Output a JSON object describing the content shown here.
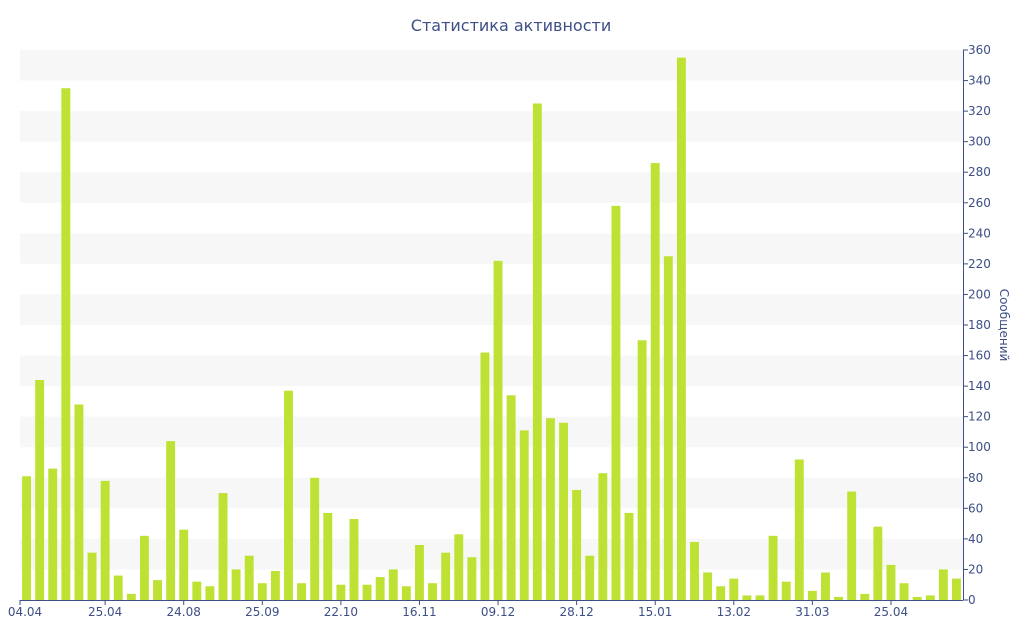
{
  "chart_data": {
    "type": "bar",
    "title": "Статистика активности",
    "xlabel": "",
    "ylabel": "Сообщений",
    "ylim": [
      0,
      360
    ],
    "y_ticks": [
      0,
      20,
      40,
      60,
      80,
      100,
      120,
      140,
      160,
      180,
      200,
      220,
      240,
      260,
      280,
      300,
      320,
      340,
      360
    ],
    "y_axis_position": "right",
    "grid": "alternating horizontal bands",
    "x_tick_labels": [
      {
        "index": 0,
        "label": "04.04"
      },
      {
        "index": 6,
        "label": "25.04"
      },
      {
        "index": 12,
        "label": "24.08"
      },
      {
        "index": 18,
        "label": "25.09"
      },
      {
        "index": 24,
        "label": "22.10"
      },
      {
        "index": 30,
        "label": "16.11"
      },
      {
        "index": 36,
        "label": "09.12"
      },
      {
        "index": 42,
        "label": "28.12"
      },
      {
        "index": 48,
        "label": "15.01"
      },
      {
        "index": 54,
        "label": "13.02"
      },
      {
        "index": 60,
        "label": "31.03"
      },
      {
        "index": 66,
        "label": "25.04"
      }
    ],
    "values": [
      81,
      144,
      86,
      335,
      128,
      31,
      78,
      16,
      4,
      42,
      13,
      104,
      46,
      12,
      9,
      70,
      20,
      29,
      11,
      19,
      137,
      11,
      80,
      57,
      10,
      53,
      10,
      15,
      20,
      9,
      36,
      11,
      31,
      43,
      28,
      162,
      222,
      134,
      111,
      325,
      119,
      116,
      72,
      29,
      83,
      258,
      57,
      170,
      286,
      225,
      355,
      38,
      18,
      9,
      14,
      3,
      3,
      42,
      12,
      92,
      6,
      18,
      2,
      71,
      4,
      48,
      23,
      11,
      2,
      3,
      20,
      14
    ],
    "colors": {
      "bar": "#bde234",
      "band": "#f7f7f7",
      "text": "#3d4f86",
      "axis": "#3d4f86"
    }
  }
}
